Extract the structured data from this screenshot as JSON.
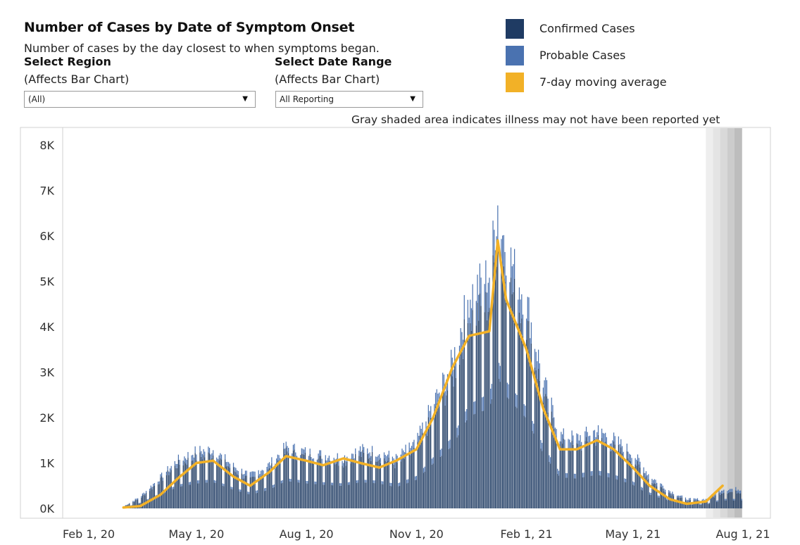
{
  "header": {
    "title": "Number of Cases by Date of Symptom Onset",
    "subtitle": "Number of cases by the day closest to when symptoms began."
  },
  "filters": {
    "region": {
      "label": "Select Region",
      "sub": "(Affects Bar Chart)",
      "value": "(All)"
    },
    "date_range": {
      "label": "Select Date Range",
      "sub": "(Affects Bar Chart)",
      "value": "All Reporting"
    }
  },
  "legend": {
    "items": [
      {
        "label": "Confirmed Cases",
        "color": "#1f3b63"
      },
      {
        "label": "Probable Cases",
        "color": "#4a72b0"
      },
      {
        "label": "7-day moving average",
        "color": "#f2b127"
      }
    ]
  },
  "note": "Gray shaded area indicates illness may not have been reported yet",
  "chart_data": {
    "type": "bar",
    "x_tick_labels": [
      "Feb 1, 20",
      "May 1, 20",
      "Aug 1, 20",
      "Nov 1, 20",
      "Feb 1, 21",
      "May 1, 21",
      "Aug 1, 21"
    ],
    "y_tick_labels": [
      "0K",
      "1K",
      "2K",
      "3K",
      "4K",
      "5K",
      "6K",
      "7K",
      "8K"
    ],
    "ylim": [
      0,
      8000
    ],
    "grid": false,
    "legend_position": "top-right",
    "x_start": "2020-02-01",
    "x_end": "2021-08-01",
    "series": [
      {
        "name": "Confirmed Cases",
        "points": [
          [
            "2020-03-01",
            30
          ],
          [
            "2020-03-15",
            200
          ],
          [
            "2020-04-01",
            550
          ],
          [
            "2020-04-15",
            850
          ],
          [
            "2020-05-01",
            1000
          ],
          [
            "2020-05-15",
            1050
          ],
          [
            "2020-06-01",
            750
          ],
          [
            "2020-06-15",
            550
          ],
          [
            "2020-07-01",
            750
          ],
          [
            "2020-07-15",
            1100
          ],
          [
            "2020-08-01",
            1000
          ],
          [
            "2020-08-15",
            950
          ],
          [
            "2020-09-01",
            900
          ],
          [
            "2020-09-15",
            1050
          ],
          [
            "2020-10-01",
            1000
          ],
          [
            "2020-10-15",
            850
          ],
          [
            "2020-11-01",
            1150
          ],
          [
            "2020-11-15",
            1800
          ],
          [
            "2020-12-01",
            2500
          ],
          [
            "2020-12-15",
            3700
          ],
          [
            "2021-01-01",
            4000
          ],
          [
            "2021-01-08",
            5300
          ],
          [
            "2021-01-15",
            4500
          ],
          [
            "2021-02-01",
            3600
          ],
          [
            "2021-02-15",
            2200
          ],
          [
            "2021-03-01",
            1250
          ],
          [
            "2021-03-15",
            1200
          ],
          [
            "2021-04-01",
            1350
          ],
          [
            "2021-04-15",
            1200
          ],
          [
            "2021-05-01",
            950
          ],
          [
            "2021-05-15",
            550
          ],
          [
            "2021-06-01",
            300
          ],
          [
            "2021-06-15",
            150
          ],
          [
            "2021-07-01",
            150
          ],
          [
            "2021-07-15",
            320
          ]
        ]
      },
      {
        "name": "Probable Cases",
        "points": [
          [
            "2020-03-01",
            5
          ],
          [
            "2020-04-01",
            60
          ],
          [
            "2020-05-01",
            120
          ],
          [
            "2020-06-01",
            80
          ],
          [
            "2020-07-01",
            110
          ],
          [
            "2020-08-01",
            100
          ],
          [
            "2020-09-01",
            100
          ],
          [
            "2020-10-01",
            110
          ],
          [
            "2020-11-01",
            150
          ],
          [
            "2020-12-01",
            350
          ],
          [
            "2021-01-01",
            600
          ],
          [
            "2021-01-08",
            650
          ],
          [
            "2021-02-01",
            450
          ],
          [
            "2021-03-01",
            180
          ],
          [
            "2021-04-01",
            180
          ],
          [
            "2021-05-01",
            130
          ],
          [
            "2021-06-01",
            40
          ],
          [
            "2021-07-01",
            30
          ],
          [
            "2021-07-15",
            60
          ]
        ]
      },
      {
        "name": "7-day moving average",
        "points": [
          [
            "2020-03-01",
            20
          ],
          [
            "2020-03-15",
            50
          ],
          [
            "2020-04-01",
            300
          ],
          [
            "2020-04-15",
            650
          ],
          [
            "2020-05-01",
            1000
          ],
          [
            "2020-05-15",
            1050
          ],
          [
            "2020-06-01",
            700
          ],
          [
            "2020-06-15",
            500
          ],
          [
            "2020-07-01",
            800
          ],
          [
            "2020-07-15",
            1150
          ],
          [
            "2020-08-01",
            1050
          ],
          [
            "2020-08-15",
            950
          ],
          [
            "2020-09-01",
            1100
          ],
          [
            "2020-09-15",
            1000
          ],
          [
            "2020-10-01",
            900
          ],
          [
            "2020-10-15",
            1050
          ],
          [
            "2020-11-01",
            1300
          ],
          [
            "2020-11-15",
            2000
          ],
          [
            "2020-12-01",
            3100
          ],
          [
            "2020-12-15",
            3800
          ],
          [
            "2021-01-01",
            3900
          ],
          [
            "2021-01-08",
            5900
          ],
          [
            "2021-01-15",
            4600
          ],
          [
            "2021-02-01",
            3500
          ],
          [
            "2021-02-15",
            2200
          ],
          [
            "2021-03-01",
            1300
          ],
          [
            "2021-03-15",
            1300
          ],
          [
            "2021-04-01",
            1500
          ],
          [
            "2021-04-15",
            1300
          ],
          [
            "2021-05-01",
            900
          ],
          [
            "2021-05-15",
            500
          ],
          [
            "2021-06-01",
            200
          ],
          [
            "2021-06-15",
            100
          ],
          [
            "2021-07-01",
            150
          ],
          [
            "2021-07-15",
            500
          ]
        ]
      }
    ],
    "gray_shaded_range": [
      "2021-07-01",
      "2021-07-31"
    ]
  }
}
